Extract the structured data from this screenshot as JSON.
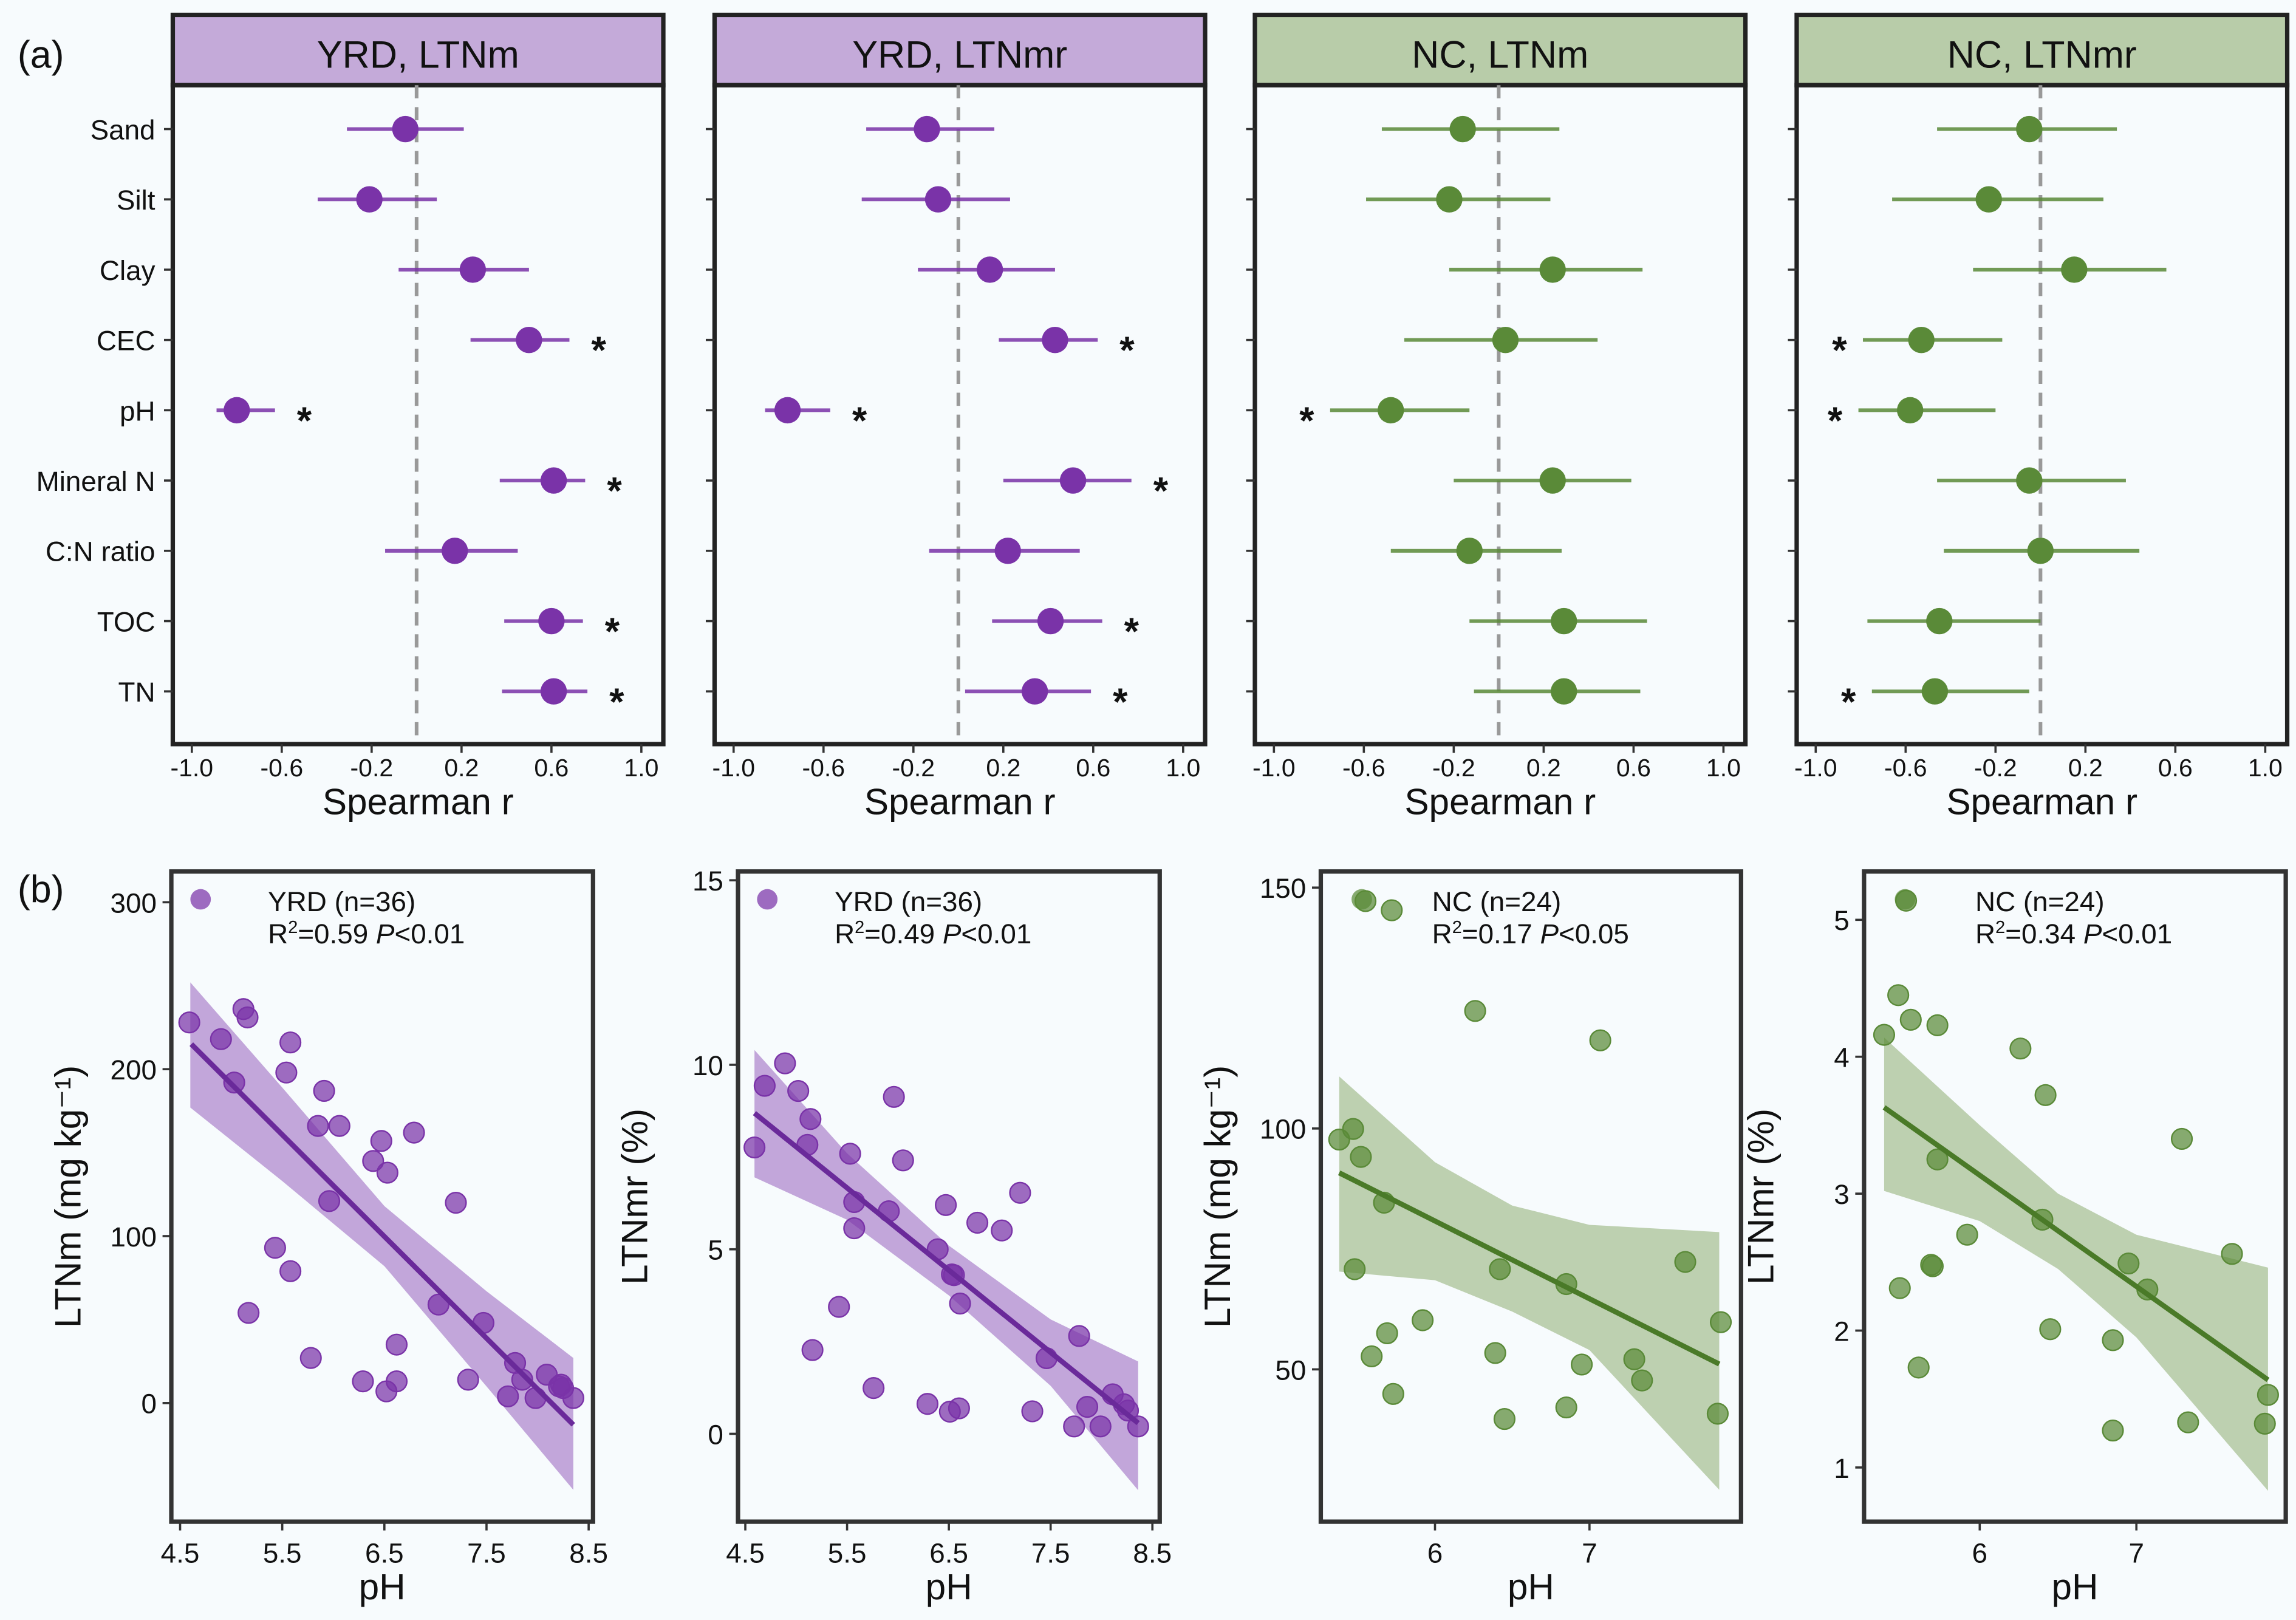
{
  "panel_labels": {
    "a": "(a)",
    "b": "(b)"
  },
  "colors": {
    "YRD_point": "#7a33a8",
    "YRD_line": "#6a2a9a",
    "YRD_band": "#b996d4",
    "YRD_strip": "#c4aad9",
    "NC_point": "#5a8a38",
    "NC_line": "#4a7a28",
    "NC_band": "#b3c8a2",
    "NC_strip": "#b8cca9"
  },
  "chart_data": [
    {
      "type": "forest",
      "title": "YRD, LTNm",
      "group": "YRD",
      "xlabel": "Spearman r",
      "xlim": [
        -1.0,
        1.0
      ],
      "xticks": [
        "-1.0",
        "-0.6",
        "-0.2",
        "0.2",
        "0.6",
        "1.0"
      ],
      "reference_line": 0,
      "categories": [
        "Sand",
        "Silt",
        "Clay",
        "CEC",
        "pH",
        "Mineral N",
        "C:N ratio",
        "TOC",
        "TN"
      ],
      "r": [
        -0.05,
        -0.21,
        0.25,
        0.5,
        -0.8,
        0.61,
        0.17,
        0.6,
        0.61
      ],
      "ci_low": [
        -0.31,
        -0.44,
        -0.08,
        0.24,
        -0.89,
        0.37,
        -0.14,
        0.39,
        0.38
      ],
      "ci_high": [
        0.21,
        0.09,
        0.5,
        0.68,
        -0.63,
        0.75,
        0.45,
        0.74,
        0.76
      ],
      "significant": [
        false,
        false,
        false,
        true,
        true,
        true,
        false,
        true,
        true
      ],
      "sig_marker": "*"
    },
    {
      "type": "forest",
      "title": "YRD, LTNmr",
      "group": "YRD",
      "xlabel": "Spearman r",
      "xlim": [
        -1.0,
        1.0
      ],
      "xticks": [
        "-1.0",
        "-0.6",
        "-0.2",
        "0.2",
        "0.6",
        "1.0"
      ],
      "reference_line": 0,
      "categories": [
        "Sand",
        "Silt",
        "Clay",
        "CEC",
        "pH",
        "Mineral N",
        "C:N ratio",
        "TOC",
        "TN"
      ],
      "r": [
        -0.14,
        -0.09,
        0.14,
        0.43,
        -0.76,
        0.51,
        0.22,
        0.41,
        0.34
      ],
      "ci_low": [
        -0.41,
        -0.43,
        -0.18,
        0.18,
        -0.86,
        0.2,
        -0.13,
        0.15,
        0.03
      ],
      "ci_high": [
        0.16,
        0.23,
        0.43,
        0.62,
        -0.57,
        0.77,
        0.54,
        0.64,
        0.59
      ],
      "significant": [
        false,
        false,
        false,
        true,
        true,
        true,
        false,
        true,
        true
      ],
      "sig_marker": "*"
    },
    {
      "type": "forest",
      "title": "NC, LTNm",
      "group": "NC",
      "xlabel": "Spearman r",
      "xlim": [
        -1.0,
        1.0
      ],
      "xticks": [
        "-1.0",
        "-0.6",
        "-0.2",
        "0.2",
        "0.6",
        "1.0"
      ],
      "reference_line": 0,
      "categories": [
        "Sand",
        "Silt",
        "Clay",
        "CEC",
        "pH",
        "Mineral N",
        "C:N ratio",
        "TOC",
        "TN"
      ],
      "r": [
        -0.16,
        -0.22,
        0.24,
        0.03,
        -0.48,
        0.24,
        -0.13,
        0.29,
        0.29
      ],
      "ci_low": [
        -0.52,
        -0.59,
        -0.22,
        -0.42,
        -0.75,
        -0.2,
        -0.48,
        -0.13,
        -0.11
      ],
      "ci_high": [
        0.27,
        0.23,
        0.64,
        0.44,
        -0.13,
        0.59,
        0.28,
        0.66,
        0.63
      ],
      "significant": [
        false,
        false,
        false,
        false,
        true,
        false,
        false,
        false,
        false
      ],
      "sig_marker": "*"
    },
    {
      "type": "forest",
      "title": "NC, LTNmr",
      "group": "NC",
      "xlabel": "Spearman r",
      "xlim": [
        -1.0,
        1.0
      ],
      "xticks": [
        "-1.0",
        "-0.6",
        "-0.2",
        "0.2",
        "0.6",
        "1.0"
      ],
      "reference_line": 0,
      "categories": [
        "Sand",
        "Silt",
        "Clay",
        "CEC",
        "pH",
        "Mineral N",
        "C:N ratio",
        "TOC",
        "TN"
      ],
      "r": [
        -0.05,
        -0.23,
        0.15,
        -0.53,
        -0.58,
        -0.05,
        0.0,
        -0.45,
        -0.47
      ],
      "ci_low": [
        -0.46,
        -0.66,
        -0.3,
        -0.79,
        -0.81,
        -0.46,
        -0.43,
        -0.77,
        -0.75
      ],
      "ci_high": [
        0.34,
        0.28,
        0.56,
        -0.17,
        -0.2,
        0.38,
        0.44,
        0.0,
        -0.05
      ],
      "significant": [
        false,
        false,
        false,
        true,
        true,
        false,
        false,
        false,
        true
      ],
      "sig_marker": "*"
    },
    {
      "type": "scatter",
      "group": "YRD",
      "legend": "YRD (n=36)",
      "r2": "0.59",
      "p": "<0.01",
      "xlabel": "pH",
      "ylabel": "LTNm (mg kg⁻¹)",
      "xlim": [
        4.5,
        8.5
      ],
      "ylim": [
        -70,
        300
      ],
      "xticks": [
        4.5,
        5.5,
        6.5,
        7.5,
        8.5
      ],
      "yticks": [
        0,
        100,
        200,
        300
      ],
      "x": [
        4.59,
        4.9,
        5.03,
        5.12,
        5.16,
        5.17,
        5.43,
        5.58,
        5.58,
        5.54,
        5.78,
        5.85,
        5.91,
        5.96,
        6.06,
        6.29,
        6.39,
        6.47,
        6.53,
        6.52,
        6.62,
        6.62,
        6.79,
        7.03,
        7.2,
        7.32,
        7.47,
        7.71,
        7.78,
        7.85,
        7.98,
        8.09,
        8.21,
        8.25,
        8.35,
        8.23
      ],
      "y": [
        228,
        218,
        192,
        236,
        231,
        54,
        93,
        216,
        79,
        198,
        27,
        166,
        187,
        121,
        166,
        13,
        145,
        157,
        138,
        7,
        35,
        13,
        162,
        59,
        120,
        14,
        48,
        4,
        24,
        14,
        3,
        17,
        10,
        9,
        3,
        11
      ],
      "fit": {
        "x": [
          4.61,
          8.35
        ],
        "y": [
          215,
          -13
        ]
      },
      "band": {
        "x": [
          4.6,
          5.5,
          6.5,
          7.5,
          8.35
        ],
        "lower": [
          177,
          133,
          82,
          10,
          -52
        ],
        "upper": [
          252,
          189,
          118,
          67,
          27
        ]
      }
    },
    {
      "type": "scatter",
      "group": "YRD",
      "legend": "YRD (n=36)",
      "r2": "0.49",
      "p": "<0.01",
      "xlabel": "pH",
      "ylabel": "LTNmr (%)",
      "xlim": [
        4.5,
        8.5
      ],
      "ylim": [
        -2.2,
        15
      ],
      "xticks": [
        4.5,
        5.5,
        6.5,
        7.5,
        8.5
      ],
      "yticks": [
        0,
        5,
        10,
        15
      ],
      "x": [
        4.59,
        4.69,
        4.89,
        5.02,
        5.14,
        5.11,
        5.16,
        5.42,
        5.53,
        5.57,
        5.57,
        5.76,
        5.91,
        5.96,
        6.05,
        6.29,
        6.39,
        6.47,
        6.53,
        6.51,
        6.6,
        6.61,
        6.78,
        7.02,
        7.2,
        7.32,
        7.46,
        7.78,
        7.73,
        7.86,
        7.99,
        8.11,
        8.22,
        8.26,
        8.36,
        6.55
      ],
      "y": [
        7.76,
        9.43,
        10.04,
        9.29,
        8.53,
        7.83,
        2.27,
        3.44,
        7.59,
        6.28,
        5.57,
        1.24,
        6.03,
        9.13,
        7.41,
        0.81,
        5.0,
        6.2,
        4.32,
        0.6,
        0.69,
        3.53,
        5.72,
        5.51,
        6.53,
        0.61,
        2.05,
        2.65,
        0.2,
        0.73,
        0.2,
        1.07,
        0.8,
        0.63,
        0.2,
        4.3
      ],
      "fit": {
        "x": [
          4.59,
          8.36
        ],
        "y": [
          8.69,
          0.29
        ]
      },
      "band": {
        "x": [
          4.59,
          5.5,
          6.5,
          7.5,
          8.36
        ],
        "lower": [
          6.95,
          5.8,
          3.75,
          1.3,
          -1.53
        ],
        "upper": [
          10.4,
          7.6,
          5.1,
          3.1,
          1.96
        ]
      }
    },
    {
      "type": "scatter",
      "group": "NC",
      "legend": "NC (n=24)",
      "r2": "0.17",
      "p": "<0.05",
      "xlabel": "pH",
      "ylabel": "LTNm (mg kg⁻¹)",
      "xlim": [
        5.3,
        7.9
      ],
      "ylim": [
        19,
        152
      ],
      "xticks": [
        6,
        7
      ],
      "yticks": [
        50,
        100,
        150
      ],
      "x": [
        5.55,
        5.72,
        5.38,
        5.47,
        5.52,
        5.67,
        5.48,
        5.59,
        5.69,
        5.73,
        5.92,
        6.26,
        6.42,
        6.39,
        6.45,
        6.85,
        6.85,
        7.07,
        6.95,
        7.29,
        7.34,
        7.62,
        7.85,
        7.83
      ],
      "y": [
        147.2,
        145.3,
        97.7,
        99.9,
        94.1,
        84.6,
        70.8,
        52.7,
        57.5,
        44.9,
        60.2,
        124.4,
        70.8,
        53.4,
        39.7,
        67.7,
        42.1,
        118.3,
        51.0,
        52.1,
        47.7,
        72.3,
        59.8,
        40.8
      ],
      "fit": {
        "x": [
          5.38,
          7.84
        ],
        "y": [
          90.8,
          51.1
        ]
      },
      "band": {
        "x": [
          5.38,
          6,
          6.5,
          7,
          7.84
        ],
        "lower": [
          70.3,
          68.5,
          62,
          54,
          25
        ],
        "upper": [
          110.8,
          93,
          84,
          80,
          78.5
        ]
      }
    },
    {
      "type": "scatter",
      "group": "NC",
      "legend": "NC (n=24)",
      "r2": "0.34",
      "p": "<0.01",
      "xlabel": "pH",
      "ylabel": "LTNmr (%)",
      "xlim": [
        5.3,
        7.9
      ],
      "ylim": [
        0.6,
        5.4
      ],
      "xticks": [
        6,
        7
      ],
      "yticks": [
        1,
        2,
        3,
        4,
        5
      ],
      "x": [
        5.53,
        5.48,
        5.39,
        5.56,
        5.73,
        5.73,
        5.49,
        5.69,
        5.7,
        5.61,
        5.92,
        6.26,
        6.42,
        6.4,
        6.45,
        6.85,
        6.85,
        6.95,
        7.07,
        7.29,
        7.33,
        7.61,
        7.84,
        7.82
      ],
      "y": [
        5.14,
        4.45,
        4.16,
        4.27,
        4.23,
        3.25,
        2.31,
        2.48,
        2.47,
        1.73,
        2.7,
        4.06,
        3.72,
        2.81,
        2.01,
        1.93,
        1.27,
        2.49,
        2.3,
        3.4,
        1.33,
        2.56,
        1.53,
        1.32
      ],
      "fit": {
        "x": [
          5.39,
          7.84
        ],
        "y": [
          3.63,
          1.64
        ]
      },
      "band": {
        "x": [
          5.39,
          6,
          6.5,
          7,
          7.84
        ],
        "lower": [
          3.02,
          2.8,
          2.45,
          1.95,
          0.83
        ],
        "upper": [
          4.14,
          3.5,
          3.0,
          2.7,
          2.46
        ]
      }
    }
  ]
}
